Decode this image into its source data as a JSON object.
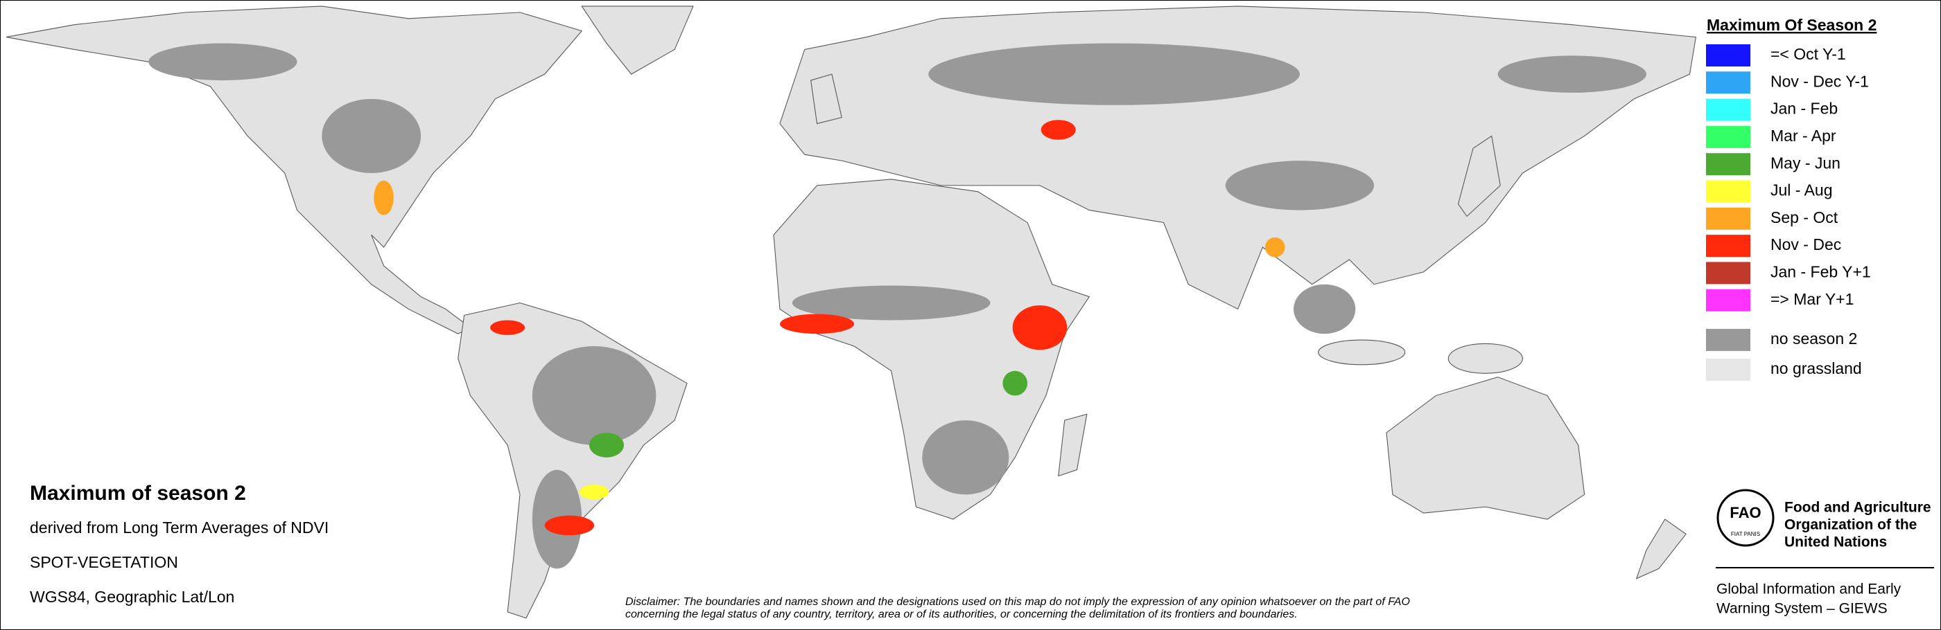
{
  "legend": {
    "title": "Maximum Of Season 2",
    "items": [
      {
        "label": "=< Oct Y-1",
        "color": "#1414ff"
      },
      {
        "label": "Nov - Dec Y-1",
        "color": "#2ea6f5"
      },
      {
        "label": "Jan - Feb",
        "color": "#33ffff"
      },
      {
        "label": "Mar - Apr",
        "color": "#33ff66"
      },
      {
        "label": "May - Jun",
        "color": "#4caa33"
      },
      {
        "label": "Jul - Aug",
        "color": "#ffff33"
      },
      {
        "label": "Sep - Oct",
        "color": "#ffa524"
      },
      {
        "label": "Nov - Dec",
        "color": "#ff2a0c"
      },
      {
        "label": "Jan - Feb Y+1",
        "color": "#c0392b"
      },
      {
        "label": "=> Mar Y+1",
        "color": "#ff33ff"
      }
    ],
    "extra_items": [
      {
        "label": "no season 2",
        "color": "#999999"
      },
      {
        "label": "no grassland",
        "color": "#e6e6e6"
      }
    ]
  },
  "info": {
    "title": "Maximum of season 2",
    "lines": [
      "derived from Long Term Averages of NDVI",
      "SPOT-VEGETATION",
      "WGS84, Geographic Lat/Lon"
    ]
  },
  "disclaimer": [
    "Disclaimer: The boundaries and names shown and the designations used on this map do not imply the expression of any opinion whatsoever on the part of FAO",
    "concerning the legal status of any country, territory, area or of its authorities, or concerning the delimitation of its frontiers and boundaries."
  ],
  "organization": {
    "logo": "FAO",
    "motto": "FIAT PANIS",
    "name": [
      "Food and Agriculture",
      "Organization of the",
      "United Nations"
    ],
    "system": [
      "Global Information and Early",
      "Warning System – GIEWS"
    ]
  }
}
